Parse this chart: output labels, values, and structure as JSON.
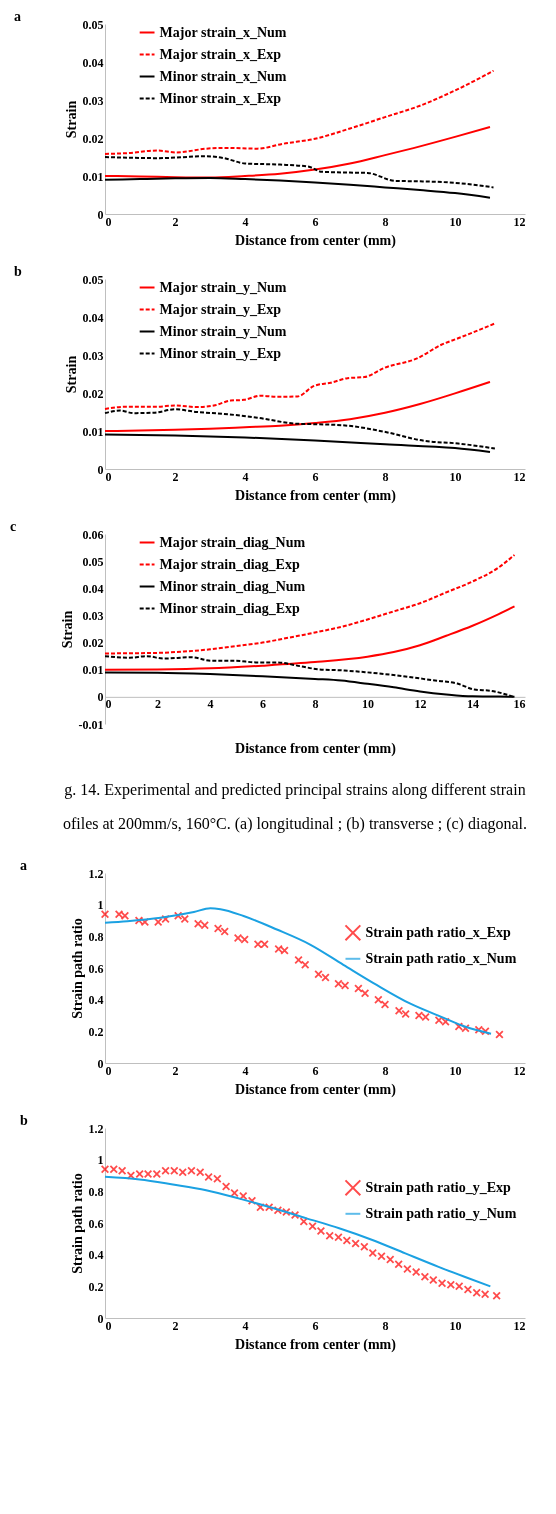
{
  "chart_data": [
    {
      "type": "line",
      "title": "a",
      "xlabel": "Distance from center (mm)",
      "ylabel": "Strain",
      "xlim": [
        0,
        12
      ],
      "xticks": [
        0,
        2,
        4,
        6,
        8,
        10,
        12
      ],
      "ylim": [
        0,
        0.05
      ],
      "yticks": [
        0,
        0.01,
        0.02,
        0.03,
        0.04,
        0.05
      ],
      "legend": "top left",
      "series": [
        {
          "name": "Major strain_x_Num",
          "color": "#ff0000",
          "line_style": "solid",
          "x": [
            0,
            1,
            2,
            3,
            4,
            5,
            6,
            7,
            8,
            9,
            10,
            11
          ],
          "values": [
            0.01,
            0.0099,
            0.0097,
            0.0096,
            0.01,
            0.0106,
            0.0117,
            0.0133,
            0.0155,
            0.0178,
            0.0203,
            0.0229
          ]
        },
        {
          "name": "Major strain_x_Exp",
          "color": "#ff0000",
          "line_style": "dashed",
          "x": [
            0,
            0.6,
            1.5,
            2.05,
            2.9,
            3.4,
            4.35,
            5.1,
            6,
            7,
            8,
            9,
            10,
            11.1
          ],
          "values": [
            0.0158,
            0.016,
            0.0167,
            0.0162,
            0.0172,
            0.0174,
            0.0172,
            0.0185,
            0.0198,
            0.0225,
            0.0255,
            0.0285,
            0.0325,
            0.0377
          ]
        },
        {
          "name": "Minor strain_x_Num",
          "color": "#000000",
          "line_style": "solid",
          "x": [
            0,
            1,
            2,
            3,
            4,
            5,
            6,
            7,
            8,
            9,
            10,
            11
          ],
          "values": [
            0.009,
            0.0092,
            0.0094,
            0.0095,
            0.0092,
            0.0088,
            0.0083,
            0.0077,
            0.007,
            0.0063,
            0.0055,
            0.0043
          ]
        },
        {
          "name": "Minor strain_x_Exp",
          "color": "#000000",
          "line_style": "dashed",
          "x": [
            0,
            1.5,
            2.9,
            3.4,
            4,
            5,
            5.8,
            6.2,
            7,
            7.5,
            8.3,
            9,
            10,
            11.1
          ],
          "values": [
            0.015,
            0.0147,
            0.0152,
            0.0147,
            0.0133,
            0.013,
            0.0125,
            0.0111,
            0.0109,
            0.0108,
            0.0087,
            0.0086,
            0.0082,
            0.007
          ]
        }
      ]
    },
    {
      "type": "line",
      "title": "b",
      "xlabel": "Distance from center (mm)",
      "ylabel": "Strain",
      "xlim": [
        0,
        12
      ],
      "xticks": [
        0,
        2,
        4,
        6,
        8,
        10,
        12
      ],
      "ylim": [
        0,
        0.05
      ],
      "yticks": [
        0,
        0.01,
        0.02,
        0.03,
        0.04,
        0.05
      ],
      "legend": "top left",
      "series": [
        {
          "name": "Major strain_y_Num",
          "color": "#ff0000",
          "line_style": "solid",
          "x": [
            0,
            1,
            2,
            3,
            4,
            5,
            6,
            7,
            8,
            9,
            10,
            11
          ],
          "values": [
            0.01,
            0.0101,
            0.0103,
            0.0106,
            0.011,
            0.0114,
            0.0121,
            0.0131,
            0.0148,
            0.0171,
            0.0199,
            0.0229
          ]
        },
        {
          "name": "Major strain_y_Exp",
          "color": "#ff0000",
          "line_style": "dashed",
          "x": [
            0,
            0.62,
            1.48,
            2.0,
            2.63,
            3.11,
            3.59,
            3.97,
            4.45,
            4.92,
            5.5,
            5.98,
            6.45,
            6.93,
            7.41,
            7.98,
            8.94,
            9.61,
            10.09,
            11.14
          ],
          "values": [
            0.0158,
            0.0164,
            0.0164,
            0.0167,
            0.0163,
            0.0167,
            0.018,
            0.0182,
            0.0193,
            0.019,
            0.0191,
            0.0219,
            0.0227,
            0.0239,
            0.0242,
            0.0266,
            0.0292,
            0.0327,
            0.0344,
            0.0383
          ]
        },
        {
          "name": "Minor strain_y_Num",
          "color": "#000000",
          "line_style": "solid",
          "x": [
            0,
            2,
            4,
            6,
            8,
            10,
            11
          ],
          "values": [
            0.0091,
            0.0088,
            0.0083,
            0.0075,
            0.0065,
            0.0055,
            0.0045
          ]
        },
        {
          "name": "Minor strain_y_Exp",
          "color": "#000000",
          "line_style": "dashed",
          "x": [
            0,
            0.43,
            0.81,
            1.39,
            2.0,
            2.63,
            3.4,
            4.35,
            5.5,
            5.98,
            6.93,
            7.98,
            9.13,
            10.09,
            11.14
          ],
          "values": [
            0.0147,
            0.0154,
            0.0147,
            0.0148,
            0.0157,
            0.015,
            0.0145,
            0.0135,
            0.0119,
            0.0118,
            0.0114,
            0.0098,
            0.0074,
            0.0067,
            0.0054
          ]
        }
      ]
    },
    {
      "type": "line",
      "title": "c",
      "xlabel": "Distance from center (mm)",
      "ylabel": "Strain",
      "xlim": [
        0,
        16
      ],
      "xticks": [
        0,
        2,
        4,
        6,
        8,
        10,
        12,
        14,
        16
      ],
      "ylim": [
        -0.01,
        0.06
      ],
      "yticks": [
        -0.01,
        0,
        0.01,
        0.02,
        0.03,
        0.04,
        0.05,
        0.06
      ],
      "legend": "top left",
      "annotations": [
        "g. 14. Experimental and predicted principal strains along different strain",
        "ofiles at 200mm/s, 160°C. (a) longitudinal ; (b) transverse ; (c) diagonal."
      ],
      "series": [
        {
          "name": "Major strain_diag_Num",
          "color": "#ff0000",
          "line_style": "solid",
          "x": [
            0,
            2,
            4,
            6,
            8,
            10,
            11,
            12,
            13,
            14,
            15,
            15.6
          ],
          "values": [
            0.01,
            0.0101,
            0.0105,
            0.0115,
            0.0128,
            0.0148,
            0.0165,
            0.019,
            0.0225,
            0.0262,
            0.0305,
            0.0333
          ]
        },
        {
          "name": "Major strain_diag_Exp",
          "color": "#ff0000",
          "line_style": "dashed",
          "x": [
            0,
            2,
            3,
            4,
            5,
            6,
            7,
            8,
            9,
            10,
            11,
            12,
            13,
            14,
            15,
            15.6
          ],
          "values": [
            0.016,
            0.0162,
            0.0167,
            0.0175,
            0.0187,
            0.02,
            0.0218,
            0.0237,
            0.0258,
            0.0285,
            0.0315,
            0.0345,
            0.0385,
            0.0425,
            0.0477,
            0.0523
          ]
        },
        {
          "name": "Minor strain_diag_Num",
          "color": "#000000",
          "line_style": "solid",
          "x": [
            0,
            2,
            4,
            6,
            8,
            9,
            10,
            11,
            12,
            13,
            14,
            15,
            15.6
          ],
          "values": [
            0.009,
            0.0089,
            0.0084,
            0.0076,
            0.0066,
            0.006,
            0.0048,
            0.0035,
            0.002,
            0.0009,
            0.0002,
            0.0001,
            0
          ]
        },
        {
          "name": "Minor strain_diag_Exp",
          "color": "#000000",
          "line_style": "dashed",
          "x": [
            0,
            0.94,
            1.59,
            2.24,
            3.28,
            4.06,
            4.97,
            5.75,
            6.53,
            7.44,
            8.09,
            9.13,
            9.91,
            11.21,
            12.51,
            13.42,
            14.07,
            14.72,
            15.57
          ],
          "values": [
            0.015,
            0.0144,
            0.015,
            0.0141,
            0.0146,
            0.0133,
            0.0133,
            0.0127,
            0.0127,
            0.0113,
            0.0102,
            0.0097,
            0.0091,
            0.0078,
            0.0061,
            0.0049,
            0.0027,
            0.0022,
            0
          ]
        }
      ]
    },
    {
      "type": "line",
      "title": "a",
      "xlabel": "Distance from center (mm)",
      "ylabel": "Strain path ratio",
      "xlim": [
        0,
        12
      ],
      "xticks": [
        0,
        2,
        4,
        6,
        8,
        10,
        12
      ],
      "ylim": [
        0,
        1.2
      ],
      "yticks": [
        0,
        0.2,
        0.4,
        0.6,
        0.8,
        1,
        1.2
      ],
      "legend": "right",
      "series": [
        {
          "name": "Strain path ratio_x_Exp",
          "type": "scatter",
          "marker": "cross",
          "color": "#ff0000",
          "x": [
            0,
            0.4,
            0.57,
            0.97,
            1.14,
            1.52,
            1.73,
            2.09,
            2.28,
            2.66,
            2.85,
            3.23,
            3.42,
            3.8,
            3.99,
            4.37,
            4.56,
            4.96,
            5.13,
            5.53,
            5.72,
            6.1,
            6.3,
            6.67,
            6.86,
            7.24,
            7.43,
            7.81,
            8.0,
            8.4,
            8.59,
            8.97,
            9.16,
            9.54,
            9.73,
            10.11,
            10.3,
            10.68,
            10.87,
            11.27
          ],
          "values": [
            0.94,
            0.94,
            0.93,
            0.9,
            0.89,
            0.89,
            0.91,
            0.93,
            0.91,
            0.88,
            0.87,
            0.85,
            0.83,
            0.79,
            0.78,
            0.75,
            0.75,
            0.72,
            0.71,
            0.65,
            0.62,
            0.56,
            0.54,
            0.5,
            0.49,
            0.47,
            0.44,
            0.4,
            0.37,
            0.33,
            0.31,
            0.3,
            0.29,
            0.27,
            0.26,
            0.23,
            0.22,
            0.21,
            0.2,
            0.18
          ]
        },
        {
          "name": "Strain path ratio_x_Num",
          "type": "line",
          "color": "#1ba1e2",
          "line_style": "solid",
          "x": [
            0,
            0.64,
            1.59,
            2.54,
            3.01,
            3.3,
            3.96,
            4.91,
            5.86,
            6.81,
            7.76,
            8.71,
            9.66,
            10.32,
            11.03
          ],
          "values": [
            0.886,
            0.896,
            0.918,
            0.954,
            0.977,
            0.971,
            0.928,
            0.843,
            0.748,
            0.62,
            0.493,
            0.376,
            0.287,
            0.227,
            0.185
          ]
        }
      ]
    },
    {
      "type": "line",
      "title": "b",
      "xlabel": "Distance from center (mm)",
      "ylabel": "Strain path ratio",
      "xlim": [
        0,
        12
      ],
      "xticks": [
        0,
        2,
        4,
        6,
        8,
        10,
        12
      ],
      "ylim": [
        0,
        1.2
      ],
      "yticks": [
        0,
        0.2,
        0.4,
        0.6,
        0.8,
        1,
        1.2
      ],
      "legend": "right",
      "series": [
        {
          "name": "Strain path ratio_y_Exp",
          "type": "scatter",
          "marker": "cross",
          "color": "#ff0000",
          "x": [
            0,
            0.25,
            0.49,
            0.74,
            0.99,
            1.23,
            1.48,
            1.73,
            1.98,
            2.22,
            2.47,
            2.72,
            2.96,
            3.21,
            3.46,
            3.7,
            3.95,
            4.2,
            4.44,
            4.69,
            4.94,
            5.18,
            5.43,
            5.68,
            5.93,
            6.17,
            6.42,
            6.67,
            6.91,
            7.16,
            7.41,
            7.65,
            7.9,
            8.15,
            8.39,
            8.64,
            8.89,
            9.14,
            9.38,
            9.63,
            9.88,
            10.12,
            10.37,
            10.62,
            10.86,
            11.19
          ],
          "values": [
            0.94,
            0.94,
            0.93,
            0.9,
            0.91,
            0.91,
            0.91,
            0.93,
            0.93,
            0.92,
            0.93,
            0.92,
            0.89,
            0.88,
            0.83,
            0.79,
            0.77,
            0.74,
            0.7,
            0.7,
            0.68,
            0.67,
            0.65,
            0.61,
            0.58,
            0.55,
            0.52,
            0.51,
            0.49,
            0.47,
            0.45,
            0.41,
            0.39,
            0.37,
            0.34,
            0.31,
            0.29,
            0.26,
            0.24,
            0.22,
            0.21,
            0.2,
            0.18,
            0.16,
            0.15,
            0.14
          ]
        },
        {
          "name": "Strain path ratio_y_Num",
          "type": "line",
          "color": "#1ba1e2",
          "line_style": "solid",
          "x": [
            0,
            0.99,
            1.94,
            2.89,
            3.84,
            4.79,
            5.74,
            6.69,
            7.64,
            8.58,
            9.53,
            10.29,
            11.01
          ],
          "values": [
            0.892,
            0.875,
            0.843,
            0.807,
            0.754,
            0.695,
            0.631,
            0.567,
            0.493,
            0.408,
            0.323,
            0.259,
            0.2
          ]
        }
      ]
    }
  ]
}
